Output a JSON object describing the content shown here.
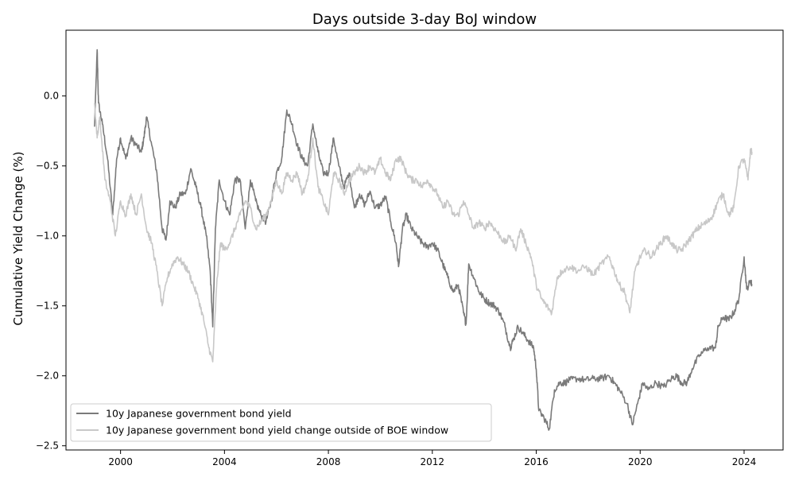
{
  "chart_data": {
    "type": "line",
    "title": "Days outside 3-day BoJ window",
    "xlabel": "",
    "ylabel": "Cumulative Yield Change (%)",
    "xlim": [
      1997.9,
      2025.5
    ],
    "ylim": [
      -2.53,
      0.47
    ],
    "x_ticks": [
      2000,
      2004,
      2008,
      2012,
      2016,
      2020,
      2024
    ],
    "y_ticks": [
      0.0,
      -0.5,
      -1.0,
      -1.5,
      -2.0,
      -2.5
    ],
    "y_tick_labels": [
      "0.0",
      "−0.5",
      "−1.0",
      "−1.5",
      "−2.0",
      "−2.5"
    ],
    "grid": false,
    "legend_position": "lower-left",
    "series": [
      {
        "name": "10y Japanese government bond yield",
        "color": "#7a7a7a",
        "points": [
          [
            1999.0,
            -0.22
          ],
          [
            1999.1,
            0.33
          ],
          [
            1999.15,
            -0.05
          ],
          [
            1999.3,
            -0.2
          ],
          [
            1999.5,
            -0.45
          ],
          [
            1999.7,
            -0.85
          ],
          [
            1999.85,
            -0.45
          ],
          [
            2000.0,
            -0.3
          ],
          [
            2000.2,
            -0.45
          ],
          [
            2000.4,
            -0.3
          ],
          [
            2000.6,
            -0.35
          ],
          [
            2000.8,
            -0.4
          ],
          [
            2000.9,
            -0.3
          ],
          [
            2001.0,
            -0.15
          ],
          [
            2001.2,
            -0.35
          ],
          [
            2001.4,
            -0.55
          ],
          [
            2001.6,
            -0.95
          ],
          [
            2001.75,
            -1.03
          ],
          [
            2001.9,
            -0.75
          ],
          [
            2002.1,
            -0.8
          ],
          [
            2002.3,
            -0.7
          ],
          [
            2002.5,
            -0.7
          ],
          [
            2002.7,
            -0.52
          ],
          [
            2002.9,
            -0.65
          ],
          [
            2003.1,
            -0.8
          ],
          [
            2003.3,
            -1.0
          ],
          [
            2003.45,
            -1.25
          ],
          [
            2003.55,
            -1.65
          ],
          [
            2003.65,
            -0.95
          ],
          [
            2003.8,
            -0.6
          ],
          [
            2004.0,
            -0.75
          ],
          [
            2004.2,
            -0.85
          ],
          [
            2004.4,
            -0.6
          ],
          [
            2004.6,
            -0.6
          ],
          [
            2004.8,
            -0.95
          ],
          [
            2005.0,
            -0.6
          ],
          [
            2005.2,
            -0.75
          ],
          [
            2005.4,
            -0.85
          ],
          [
            2005.6,
            -0.9
          ],
          [
            2005.8,
            -0.75
          ],
          [
            2006.0,
            -0.55
          ],
          [
            2006.2,
            -0.45
          ],
          [
            2006.4,
            -0.1
          ],
          [
            2006.6,
            -0.2
          ],
          [
            2006.8,
            -0.35
          ],
          [
            2007.0,
            -0.45
          ],
          [
            2007.2,
            -0.5
          ],
          [
            2007.4,
            -0.2
          ],
          [
            2007.6,
            -0.4
          ],
          [
            2007.8,
            -0.55
          ],
          [
            2008.0,
            -0.55
          ],
          [
            2008.2,
            -0.3
          ],
          [
            2008.4,
            -0.5
          ],
          [
            2008.6,
            -0.65
          ],
          [
            2008.8,
            -0.55
          ],
          [
            2009.0,
            -0.8
          ],
          [
            2009.2,
            -0.7
          ],
          [
            2009.4,
            -0.78
          ],
          [
            2009.6,
            -0.68
          ],
          [
            2009.8,
            -0.8
          ],
          [
            2010.0,
            -0.78
          ],
          [
            2010.2,
            -0.72
          ],
          [
            2010.4,
            -0.9
          ],
          [
            2010.6,
            -1.05
          ],
          [
            2010.7,
            -1.22
          ],
          [
            2010.85,
            -0.95
          ],
          [
            2011.0,
            -0.85
          ],
          [
            2011.2,
            -0.95
          ],
          [
            2011.4,
            -1.0
          ],
          [
            2011.6,
            -1.05
          ],
          [
            2011.8,
            -1.08
          ],
          [
            2012.0,
            -1.05
          ],
          [
            2012.2,
            -1.1
          ],
          [
            2012.4,
            -1.2
          ],
          [
            2012.6,
            -1.3
          ],
          [
            2012.8,
            -1.4
          ],
          [
            2013.0,
            -1.35
          ],
          [
            2013.2,
            -1.55
          ],
          [
            2013.3,
            -1.63
          ],
          [
            2013.4,
            -1.2
          ],
          [
            2013.6,
            -1.3
          ],
          [
            2013.8,
            -1.4
          ],
          [
            2014.0,
            -1.45
          ],
          [
            2014.2,
            -1.48
          ],
          [
            2014.4,
            -1.5
          ],
          [
            2014.6,
            -1.55
          ],
          [
            2014.8,
            -1.65
          ],
          [
            2015.0,
            -1.8
          ],
          [
            2015.1,
            -1.75
          ],
          [
            2015.3,
            -1.65
          ],
          [
            2015.5,
            -1.7
          ],
          [
            2015.7,
            -1.75
          ],
          [
            2015.9,
            -1.8
          ],
          [
            2016.0,
            -1.95
          ],
          [
            2016.1,
            -2.25
          ],
          [
            2016.3,
            -2.3
          ],
          [
            2016.5,
            -2.38
          ],
          [
            2016.7,
            -2.1
          ],
          [
            2016.9,
            -2.05
          ],
          [
            2017.1,
            -2.05
          ],
          [
            2017.3,
            -2.03
          ],
          [
            2017.6,
            -2.02
          ],
          [
            2017.9,
            -2.03
          ],
          [
            2018.2,
            -2.02
          ],
          [
            2018.5,
            -2.02
          ],
          [
            2018.8,
            -2.0
          ],
          [
            2019.0,
            -2.05
          ],
          [
            2019.2,
            -2.1
          ],
          [
            2019.5,
            -2.2
          ],
          [
            2019.7,
            -2.35
          ],
          [
            2019.9,
            -2.2
          ],
          [
            2020.1,
            -2.05
          ],
          [
            2020.3,
            -2.1
          ],
          [
            2020.6,
            -2.05
          ],
          [
            2020.9,
            -2.08
          ],
          [
            2021.2,
            -2.02
          ],
          [
            2021.4,
            -2.0
          ],
          [
            2021.6,
            -2.05
          ],
          [
            2021.8,
            -2.05
          ],
          [
            2022.0,
            -1.95
          ],
          [
            2022.3,
            -1.85
          ],
          [
            2022.6,
            -1.8
          ],
          [
            2022.9,
            -1.8
          ],
          [
            2023.0,
            -1.65
          ],
          [
            2023.2,
            -1.58
          ],
          [
            2023.4,
            -1.6
          ],
          [
            2023.6,
            -1.55
          ],
          [
            2023.8,
            -1.45
          ],
          [
            2024.0,
            -1.15
          ],
          [
            2024.1,
            -1.38
          ],
          [
            2024.25,
            -1.32
          ],
          [
            2024.3,
            -1.35
          ]
        ]
      },
      {
        "name": "10y Japanese government bond yield change outside of BOE window",
        "color": "#c8c8c8",
        "points": [
          [
            1999.0,
            -0.05
          ],
          [
            1999.1,
            -0.3
          ],
          [
            1999.2,
            -0.15
          ],
          [
            1999.4,
            -0.6
          ],
          [
            1999.6,
            -0.75
          ],
          [
            1999.8,
            -1.0
          ],
          [
            2000.0,
            -0.75
          ],
          [
            2000.2,
            -0.85
          ],
          [
            2000.4,
            -0.7
          ],
          [
            2000.6,
            -0.85
          ],
          [
            2000.8,
            -0.7
          ],
          [
            2001.0,
            -0.95
          ],
          [
            2001.2,
            -1.05
          ],
          [
            2001.4,
            -1.25
          ],
          [
            2001.6,
            -1.5
          ],
          [
            2001.8,
            -1.3
          ],
          [
            2002.0,
            -1.2
          ],
          [
            2002.2,
            -1.15
          ],
          [
            2002.4,
            -1.2
          ],
          [
            2002.6,
            -1.25
          ],
          [
            2002.8,
            -1.35
          ],
          [
            2003.0,
            -1.45
          ],
          [
            2003.2,
            -1.6
          ],
          [
            2003.4,
            -1.8
          ],
          [
            2003.55,
            -1.9
          ],
          [
            2003.7,
            -1.35
          ],
          [
            2003.85,
            -1.05
          ],
          [
            2004.0,
            -1.1
          ],
          [
            2004.2,
            -1.05
          ],
          [
            2004.4,
            -0.95
          ],
          [
            2004.6,
            -0.85
          ],
          [
            2004.8,
            -0.75
          ],
          [
            2005.0,
            -0.8
          ],
          [
            2005.2,
            -0.95
          ],
          [
            2005.4,
            -0.9
          ],
          [
            2005.6,
            -0.85
          ],
          [
            2005.8,
            -0.75
          ],
          [
            2006.0,
            -0.6
          ],
          [
            2006.2,
            -0.7
          ],
          [
            2006.4,
            -0.55
          ],
          [
            2006.6,
            -0.6
          ],
          [
            2006.8,
            -0.55
          ],
          [
            2007.0,
            -0.7
          ],
          [
            2007.2,
            -0.6
          ],
          [
            2007.4,
            -0.3
          ],
          [
            2007.6,
            -0.65
          ],
          [
            2007.8,
            -0.75
          ],
          [
            2008.0,
            -0.85
          ],
          [
            2008.2,
            -0.55
          ],
          [
            2008.4,
            -0.6
          ],
          [
            2008.6,
            -0.7
          ],
          [
            2008.8,
            -0.6
          ],
          [
            2009.0,
            -0.55
          ],
          [
            2009.2,
            -0.5
          ],
          [
            2009.4,
            -0.55
          ],
          [
            2009.6,
            -0.5
          ],
          [
            2009.8,
            -0.55
          ],
          [
            2010.0,
            -0.45
          ],
          [
            2010.2,
            -0.55
          ],
          [
            2010.4,
            -0.6
          ],
          [
            2010.6,
            -0.45
          ],
          [
            2010.8,
            -0.45
          ],
          [
            2011.0,
            -0.55
          ],
          [
            2011.2,
            -0.6
          ],
          [
            2011.4,
            -0.6
          ],
          [
            2011.6,
            -0.65
          ],
          [
            2011.8,
            -0.6
          ],
          [
            2012.0,
            -0.65
          ],
          [
            2012.2,
            -0.7
          ],
          [
            2012.4,
            -0.8
          ],
          [
            2012.6,
            -0.75
          ],
          [
            2012.8,
            -0.85
          ],
          [
            2013.0,
            -0.85
          ],
          [
            2013.2,
            -0.75
          ],
          [
            2013.4,
            -0.85
          ],
          [
            2013.6,
            -0.95
          ],
          [
            2013.8,
            -0.9
          ],
          [
            2014.0,
            -0.95
          ],
          [
            2014.2,
            -0.9
          ],
          [
            2014.4,
            -0.95
          ],
          [
            2014.6,
            -1.0
          ],
          [
            2014.8,
            -1.05
          ],
          [
            2015.0,
            -1.0
          ],
          [
            2015.2,
            -1.1
          ],
          [
            2015.4,
            -0.95
          ],
          [
            2015.6,
            -1.05
          ],
          [
            2015.8,
            -1.15
          ],
          [
            2016.0,
            -1.35
          ],
          [
            2016.2,
            -1.45
          ],
          [
            2016.4,
            -1.5
          ],
          [
            2016.6,
            -1.55
          ],
          [
            2016.8,
            -1.3
          ],
          [
            2017.0,
            -1.25
          ],
          [
            2017.3,
            -1.22
          ],
          [
            2017.6,
            -1.25
          ],
          [
            2017.9,
            -1.22
          ],
          [
            2018.2,
            -1.28
          ],
          [
            2018.5,
            -1.2
          ],
          [
            2018.8,
            -1.15
          ],
          [
            2019.0,
            -1.25
          ],
          [
            2019.2,
            -1.35
          ],
          [
            2019.4,
            -1.4
          ],
          [
            2019.6,
            -1.55
          ],
          [
            2019.8,
            -1.25
          ],
          [
            2020.0,
            -1.15
          ],
          [
            2020.2,
            -1.1
          ],
          [
            2020.4,
            -1.15
          ],
          [
            2020.6,
            -1.1
          ],
          [
            2020.8,
            -1.05
          ],
          [
            2021.0,
            -1.0
          ],
          [
            2021.2,
            -1.05
          ],
          [
            2021.4,
            -1.1
          ],
          [
            2021.6,
            -1.1
          ],
          [
            2021.8,
            -1.05
          ],
          [
            2022.0,
            -1.0
          ],
          [
            2022.2,
            -0.95
          ],
          [
            2022.4,
            -0.92
          ],
          [
            2022.6,
            -0.9
          ],
          [
            2022.8,
            -0.85
          ],
          [
            2023.0,
            -0.75
          ],
          [
            2023.2,
            -0.7
          ],
          [
            2023.4,
            -0.85
          ],
          [
            2023.6,
            -0.8
          ],
          [
            2023.8,
            -0.5
          ],
          [
            2024.0,
            -0.45
          ],
          [
            2024.15,
            -0.6
          ],
          [
            2024.25,
            -0.38
          ],
          [
            2024.3,
            -0.4
          ]
        ]
      }
    ]
  }
}
